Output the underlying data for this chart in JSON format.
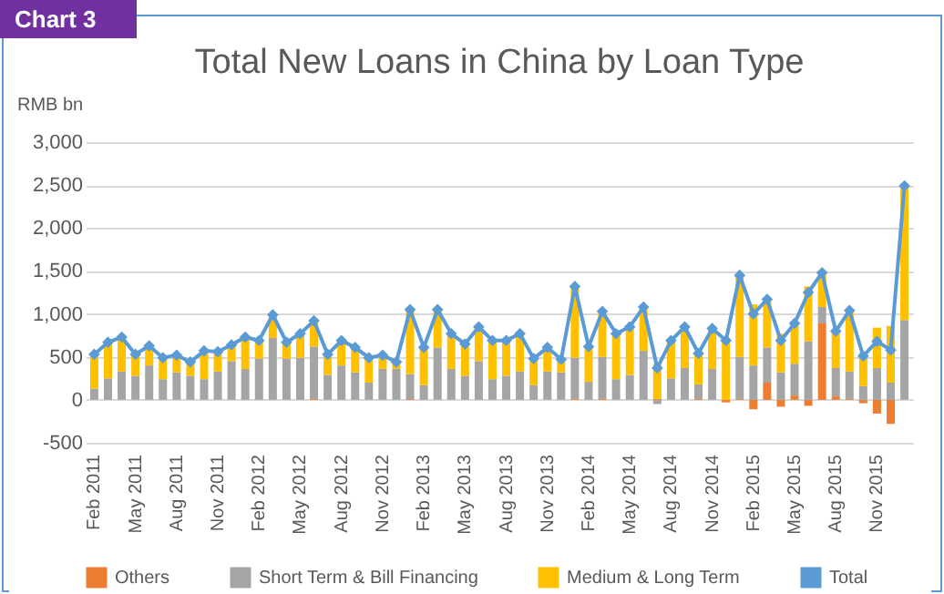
{
  "chart_data": {
    "type": "bar",
    "title": "Total New Loans in China by Loan Type",
    "ylabel": "RMB bn",
    "annotations": [
      "Chart 3"
    ],
    "categories": [
      "Feb 2011",
      null,
      null,
      "May 2011",
      null,
      null,
      "Aug 2011",
      null,
      null,
      "Nov 2011",
      null,
      null,
      "Feb 2012",
      null,
      null,
      "May 2012",
      null,
      null,
      "Aug 2012",
      null,
      null,
      "Nov 2012",
      null,
      null,
      "Feb 2013",
      null,
      null,
      "May 2013",
      null,
      null,
      "Aug 2013",
      null,
      null,
      "Nov 2013",
      null,
      null,
      "Feb 2014",
      null,
      null,
      "May 2014",
      null,
      null,
      "Aug 2014",
      null,
      null,
      "Nov 2014",
      null,
      null,
      "Feb 2015",
      null,
      null,
      "May 2015",
      null,
      null,
      "Aug 2015",
      null,
      null,
      "Nov 2015",
      null,
      null
    ],
    "stacked": true,
    "ylim": [
      -500,
      3000
    ],
    "yticks": [
      {
        "value": -500,
        "label": "-500"
      },
      0,
      {
        "value": 500,
        "label": "500"
      },
      {
        "value": 1000,
        "label": "1,000"
      },
      {
        "value": 1500,
        "label": "1,500"
      },
      {
        "value": 2000,
        "label": "2,000"
      },
      {
        "value": 2500,
        "label": "2,500"
      },
      {
        "value": 3000,
        "label": "3,000"
      }
    ],
    "grid": "y",
    "legend": "bottom",
    "marker": "diamond",
    "series": [
      {
        "name": "Others",
        "color": "#ed7d31",
        "values": [
          0,
          0,
          0,
          0,
          0,
          0,
          0,
          0,
          0,
          0,
          0,
          0,
          0,
          0,
          0,
          0,
          10,
          0,
          0,
          0,
          0,
          0,
          0,
          10,
          0,
          0,
          0,
          0,
          0,
          0,
          0,
          0,
          0,
          0,
          0,
          10,
          0,
          10,
          0,
          0,
          0,
          10,
          0,
          0,
          10,
          0,
          -30,
          10,
          -110,
          200,
          -80,
          50,
          -70,
          890,
          40,
          10,
          -40,
          -160,
          -280,
          0
        ]
      },
      {
        "name": "Short Term & Bill Financing",
        "color": "#a5a5a5",
        "values": [
          130,
          250,
          330,
          280,
          400,
          240,
          320,
          280,
          240,
          330,
          450,
          360,
          480,
          720,
          480,
          490,
          610,
          290,
          400,
          320,
          200,
          360,
          360,
          290,
          170,
          610,
          360,
          280,
          450,
          240,
          280,
          330,
          170,
          330,
          320,
          480,
          210,
          490,
          240,
          290,
          570,
          -50,
          250,
          370,
          170,
          360,
          0,
          490,
          400,
          410,
          320,
          370,
          680,
          190,
          330,
          320,
          160,
          370,
          200,
          930
        ]
      },
      {
        "name": "Medium & Long Term",
        "color": "#ffc000",
        "values": [
          400,
          420,
          400,
          250,
          230,
          250,
          200,
          160,
          330,
          230,
          190,
          370,
          210,
          270,
          190,
          280,
          300,
          240,
          290,
          290,
          290,
          160,
          80,
          750,
          440,
          440,
          410,
          370,
          400,
          450,
          410,
          440,
          310,
          280,
          150,
          830,
          410,
          530,
          530,
          560,
          510,
          410,
          440,
          480,
          360,
          470,
          720,
          950,
          710,
          560,
          450,
          470,
          640,
          400,
          430,
          710,
          390,
          470,
          660,
          1560
        ]
      },
      {
        "name": "Total",
        "type": "line",
        "color": "#5b9bd5",
        "values": [
          530,
          670,
          730,
          530,
          630,
          490,
          520,
          440,
          570,
          560,
          640,
          730,
          690,
          990,
          670,
          770,
          920,
          530,
          690,
          610,
          490,
          520,
          440,
          1050,
          610,
          1050,
          770,
          650,
          850,
          690,
          690,
          770,
          480,
          610,
          470,
          1320,
          620,
          1030,
          770,
          850,
          1080,
          370,
          690,
          850,
          540,
          830,
          690,
          1450,
          1000,
          1170,
          690,
          890,
          1250,
          1480,
          800,
          1040,
          510,
          680,
          580,
          2490
        ]
      }
    ]
  }
}
